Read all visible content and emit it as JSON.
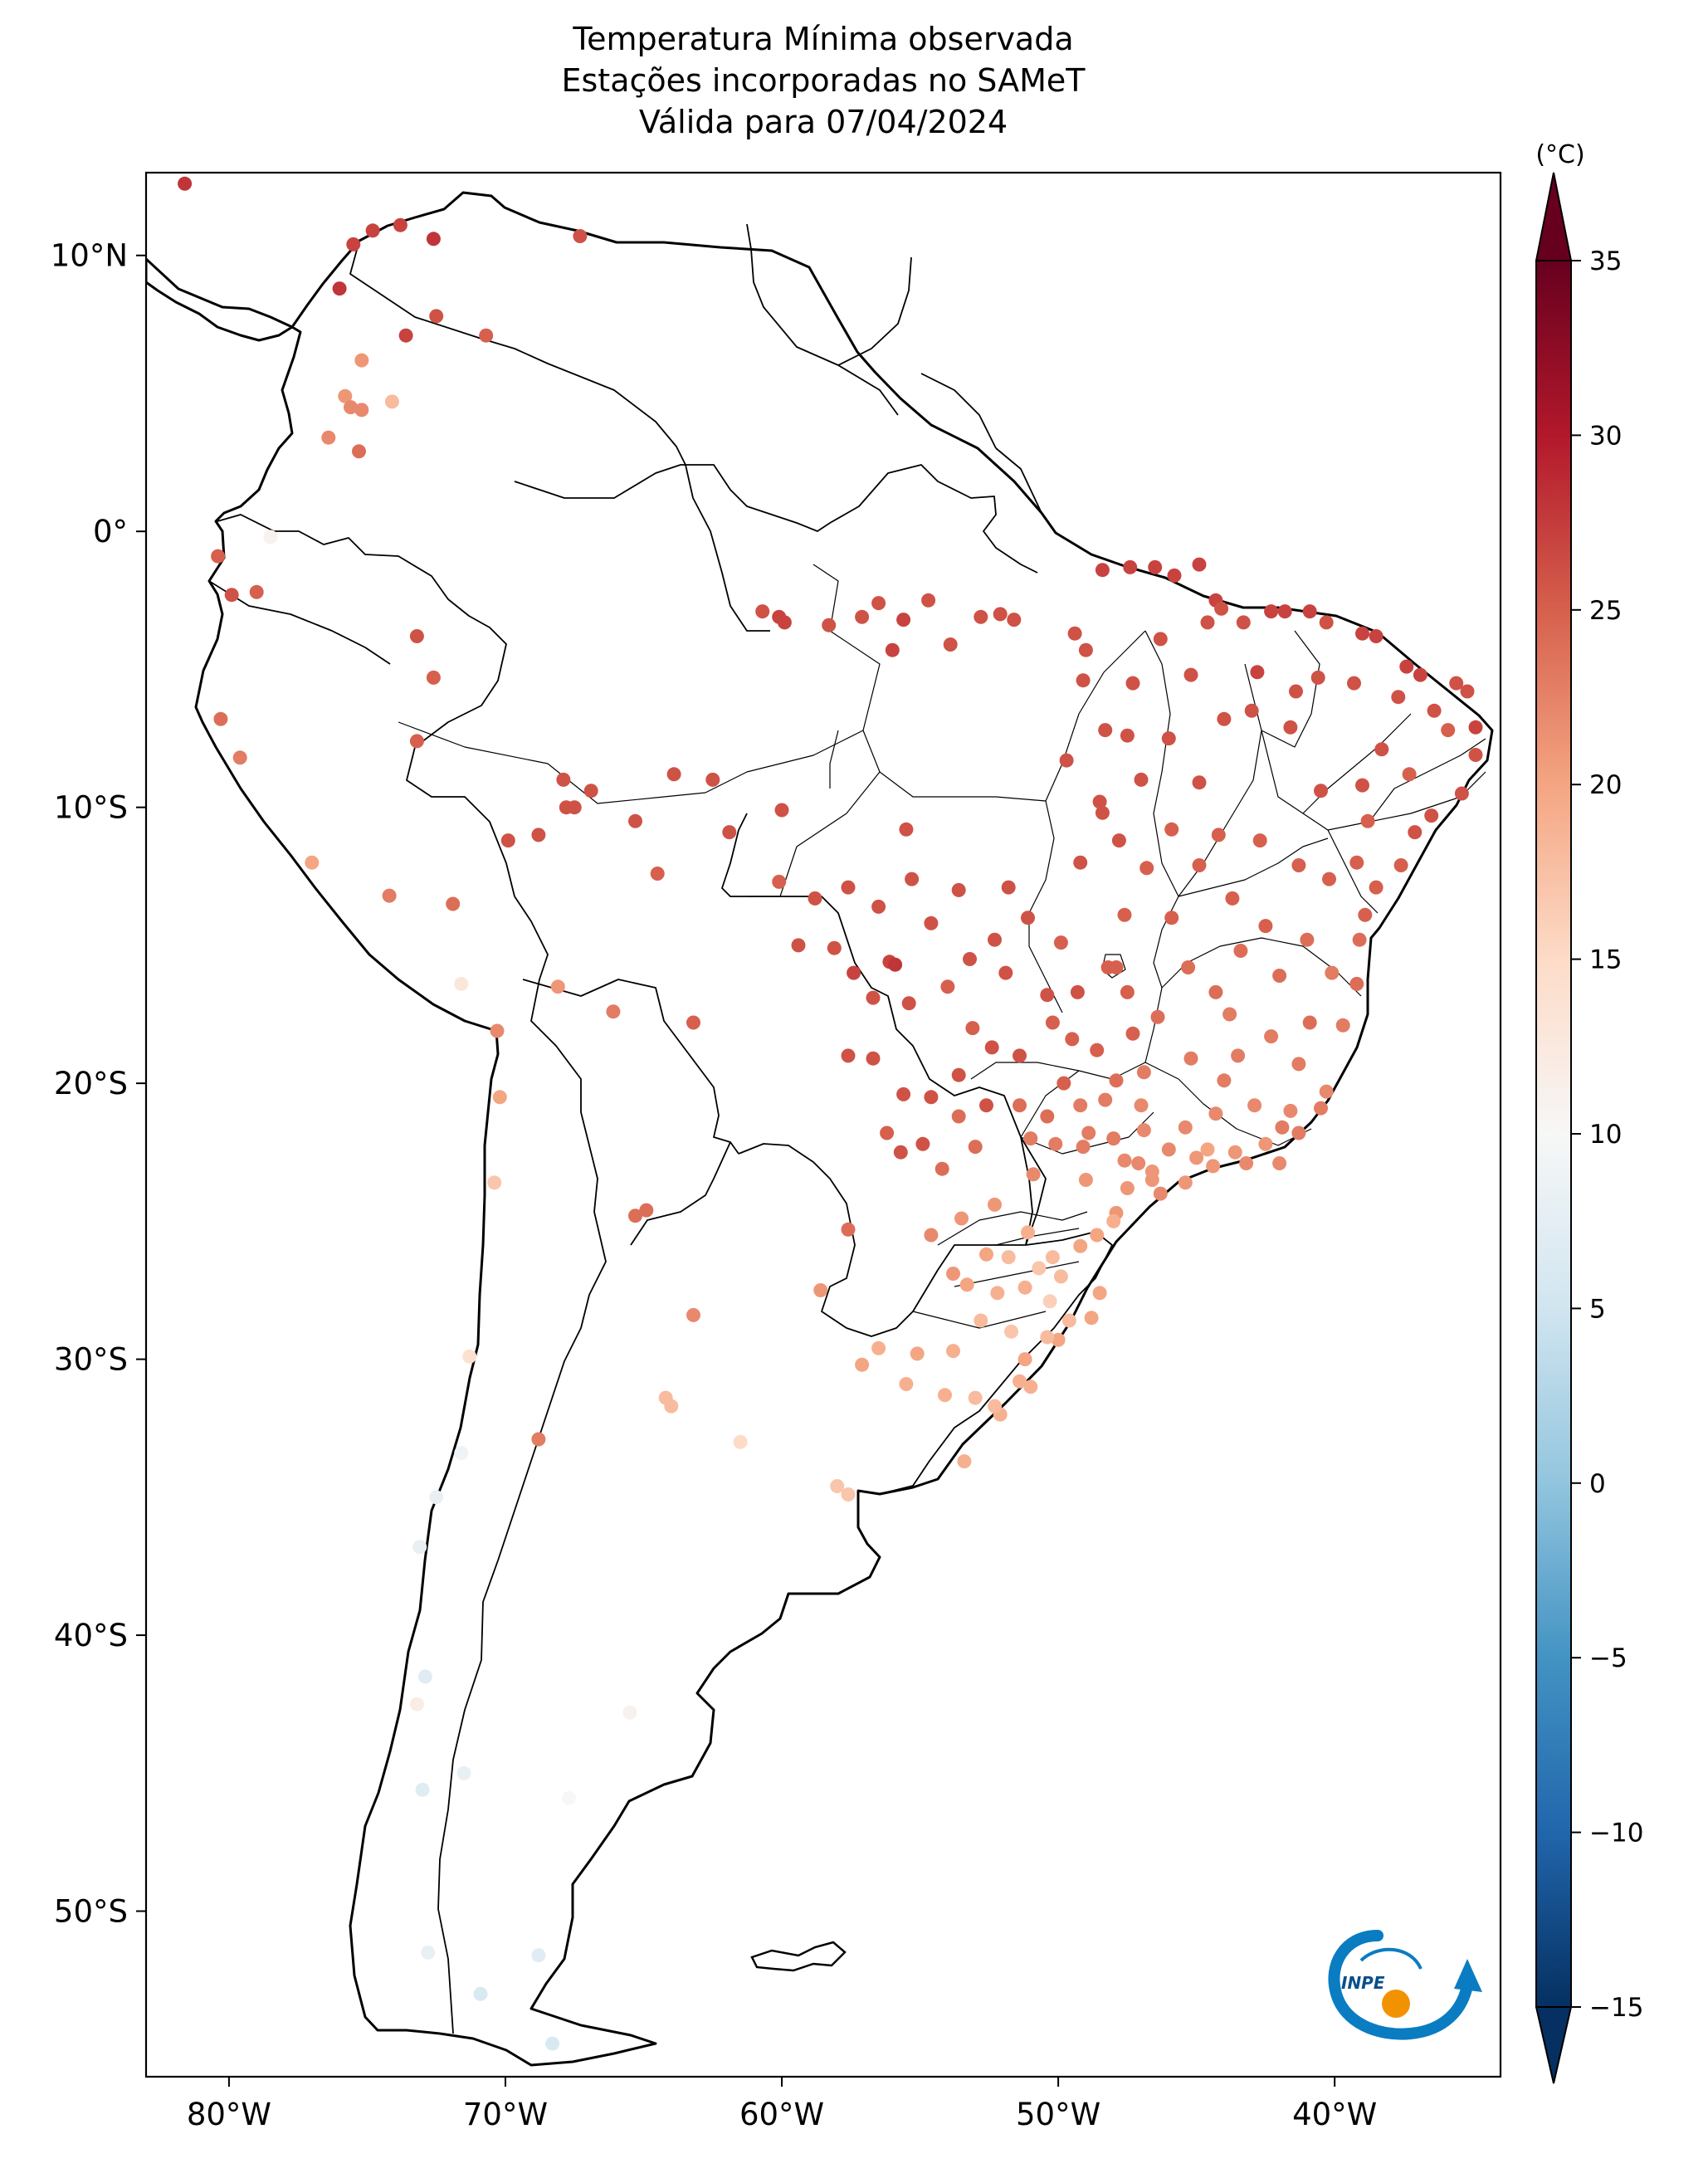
{
  "title": {
    "line1": "Temperatura Mínima observada",
    "line2": "Estações incorporadas no SAMeT",
    "line3": "Válida para 07/04/2024"
  },
  "map": {
    "lon_range": [
      -83,
      -34
    ],
    "lat_range": [
      -56,
      13
    ],
    "lon_ticks": [
      {
        "value": -80,
        "label": "80°W"
      },
      {
        "value": -70,
        "label": "70°W"
      },
      {
        "value": -60,
        "label": "60°W"
      },
      {
        "value": -50,
        "label": "50°W"
      },
      {
        "value": -40,
        "label": "40°W"
      }
    ],
    "lat_ticks": [
      {
        "value": 10,
        "label": "10°N"
      },
      {
        "value": 0,
        "label": "0°"
      },
      {
        "value": -10,
        "label": "10°S"
      },
      {
        "value": -20,
        "label": "20°S"
      },
      {
        "value": -30,
        "label": "30°S"
      },
      {
        "value": -40,
        "label": "40°S"
      },
      {
        "value": -50,
        "label": "50°S"
      }
    ]
  },
  "colorbar": {
    "unit": "(°C)",
    "min": -15,
    "max": 35,
    "ticks": [
      35,
      30,
      25,
      20,
      15,
      10,
      5,
      0,
      -5,
      -10,
      -15
    ],
    "tick_labels": [
      "35",
      "30",
      "25",
      "20",
      "15",
      "10",
      "5",
      "0",
      "−5",
      "−10",
      "−15"
    ],
    "colormap": "RdBu_r",
    "extend": "both"
  },
  "logo": {
    "text": "INPE",
    "blue": "#0a7cc2",
    "orange": "#f39200"
  },
  "chart_data": {
    "type": "scatter",
    "title": "Temperatura Mínima observada / Estações incorporadas no SAMeT / Válida para 07/04/2024",
    "xlabel": "",
    "ylabel": "",
    "colorbar_label": "(°C)",
    "note": "points: [longitude, latitude, minimum temperature °C]",
    "points": [
      [
        -81.6,
        12.6,
        28
      ],
      [
        -75.5,
        10.4,
        27
      ],
      [
        -74.8,
        10.9,
        27
      ],
      [
        -73.8,
        11.1,
        27
      ],
      [
        -72.6,
        10.6,
        28
      ],
      [
        -76.0,
        8.8,
        28
      ],
      [
        -73.6,
        7.1,
        27
      ],
      [
        -72.5,
        7.8,
        26
      ],
      [
        -70.7,
        7.1,
        25
      ],
      [
        -67.3,
        10.7,
        26
      ],
      [
        -75.2,
        6.2,
        21
      ],
      [
        -75.8,
        4.9,
        21
      ],
      [
        -75.6,
        4.5,
        22
      ],
      [
        -75.2,
        4.4,
        22
      ],
      [
        -74.1,
        4.7,
        18
      ],
      [
        -76.4,
        3.4,
        22
      ],
      [
        -75.3,
        2.9,
        24
      ],
      [
        -80.4,
        -0.9,
        25
      ],
      [
        -79.0,
        -2.2,
        25
      ],
      [
        -78.5,
        -0.2,
        11
      ],
      [
        -79.9,
        -2.3,
        26
      ],
      [
        -80.3,
        -6.8,
        24
      ],
      [
        -79.6,
        -8.2,
        23
      ],
      [
        -77.0,
        -12.0,
        20
      ],
      [
        -71.6,
        -16.4,
        13
      ],
      [
        -70.3,
        -18.1,
        22
      ],
      [
        -70.2,
        -20.5,
        20
      ],
      [
        -70.4,
        -23.6,
        17
      ],
      [
        -71.3,
        -29.9,
        14
      ],
      [
        -71.6,
        -33.4,
        9
      ],
      [
        -72.5,
        -35.0,
        8
      ],
      [
        -73.1,
        -36.8,
        8
      ],
      [
        -72.9,
        -41.5,
        7
      ],
      [
        -73.2,
        -42.5,
        12
      ],
      [
        -73.0,
        -45.6,
        7
      ],
      [
        -71.5,
        -45.0,
        8
      ],
      [
        -72.8,
        -51.5,
        8
      ],
      [
        -70.9,
        -53.0,
        6
      ],
      [
        -68.8,
        -51.6,
        7
      ],
      [
        -68.3,
        -54.8,
        6
      ],
      [
        -67.7,
        -45.9,
        10
      ],
      [
        -65.5,
        -42.8,
        11
      ],
      [
        -68.8,
        -32.9,
        23
      ],
      [
        -64.2,
        -31.4,
        18
      ],
      [
        -64.0,
        -31.7,
        18
      ],
      [
        -61.5,
        -33.0,
        15
      ],
      [
        -58.0,
        -34.6,
        17
      ],
      [
        -57.6,
        -34.9,
        17
      ],
      [
        -65.3,
        -24.8,
        24
      ],
      [
        -64.9,
        -24.6,
        24
      ],
      [
        -63.2,
        -28.4,
        22
      ],
      [
        -58.6,
        -27.5,
        21
      ],
      [
        -57.6,
        -25.3,
        24
      ],
      [
        -68.1,
        -16.5,
        21
      ],
      [
        -66.1,
        -17.4,
        23
      ],
      [
        -63.2,
        -17.8,
        25
      ],
      [
        -71.9,
        -13.5,
        24
      ],
      [
        -74.2,
        -13.2,
        23
      ],
      [
        -73.2,
        -3.8,
        26
      ],
      [
        -73.2,
        -7.6,
        25
      ],
      [
        -72.6,
        -5.3,
        25
      ],
      [
        -68.8,
        -11.0,
        26
      ],
      [
        -67.8,
        -10.0,
        26
      ],
      [
        -67.5,
        -10.0,
        26
      ],
      [
        -67.9,
        -9.0,
        26
      ],
      [
        -66.9,
        -9.4,
        26
      ],
      [
        -69.9,
        -11.2,
        26
      ],
      [
        -60.1,
        -3.1,
        27
      ],
      [
        -60.7,
        -2.9,
        26
      ],
      [
        -59.9,
        -3.3,
        27
      ],
      [
        -58.3,
        -3.4,
        26
      ],
      [
        -57.1,
        -3.1,
        26
      ],
      [
        -56.5,
        -2.6,
        26
      ],
      [
        -55.6,
        -3.2,
        27
      ],
      [
        -54.7,
        -2.5,
        26
      ],
      [
        -52.8,
        -3.1,
        26
      ],
      [
        -52.1,
        -3.0,
        26
      ],
      [
        -51.6,
        -3.2,
        26
      ],
      [
        -53.9,
        -4.1,
        26
      ],
      [
        -56.0,
        -4.3,
        27
      ],
      [
        -49.4,
        -3.7,
        26
      ],
      [
        -49.0,
        -4.3,
        26
      ],
      [
        -47.4,
        -1.3,
        27
      ],
      [
        -48.4,
        -1.4,
        27
      ],
      [
        -46.5,
        -1.3,
        27
      ],
      [
        -45.8,
        -1.6,
        27
      ],
      [
        -44.9,
        -1.2,
        27
      ],
      [
        -44.3,
        -2.5,
        27
      ],
      [
        -44.1,
        -2.8,
        26
      ],
      [
        -44.6,
        -3.3,
        26
      ],
      [
        -43.3,
        -3.3,
        26
      ],
      [
        -42.3,
        -2.9,
        27
      ],
      [
        -41.8,
        -2.9,
        27
      ],
      [
        -40.9,
        -2.9,
        27
      ],
      [
        -40.3,
        -3.3,
        26
      ],
      [
        -39.0,
        -3.7,
        27
      ],
      [
        -38.5,
        -3.8,
        27
      ],
      [
        -37.4,
        -4.9,
        27
      ],
      [
        -36.9,
        -5.2,
        27
      ],
      [
        -35.6,
        -5.5,
        26
      ],
      [
        -35.2,
        -5.8,
        26
      ],
      [
        -34.9,
        -7.1,
        27
      ],
      [
        -34.9,
        -8.1,
        26
      ],
      [
        -35.4,
        -9.5,
        26
      ],
      [
        -36.5,
        -10.3,
        26
      ],
      [
        -37.1,
        -10.9,
        26
      ],
      [
        -38.5,
        -12.9,
        25
      ],
      [
        -38.9,
        -13.9,
        25
      ],
      [
        -39.1,
        -14.8,
        24
      ],
      [
        -39.2,
        -16.4,
        24
      ],
      [
        -39.7,
        -17.9,
        23
      ],
      [
        -40.3,
        -20.3,
        22
      ],
      [
        -41.3,
        -21.8,
        23
      ],
      [
        -42.0,
        -22.9,
        22
      ],
      [
        -43.2,
        -22.9,
        22
      ],
      [
        -44.4,
        -23.0,
        21
      ],
      [
        -45.4,
        -23.6,
        21
      ],
      [
        -46.6,
        -23.5,
        21
      ],
      [
        -46.3,
        -24.0,
        22
      ],
      [
        -47.9,
        -24.7,
        21
      ],
      [
        -48.6,
        -25.5,
        20
      ],
      [
        -48.5,
        -27.6,
        20
      ],
      [
        -48.8,
        -28.5,
        20
      ],
      [
        -50.0,
        -29.3,
        20
      ],
      [
        -51.2,
        -30.0,
        20
      ],
      [
        -52.1,
        -32.0,
        19
      ],
      [
        -53.4,
        -33.7,
        19
      ],
      [
        -51.4,
        -30.8,
        19
      ],
      [
        -60.0,
        -10.1,
        26
      ],
      [
        -61.9,
        -10.9,
        26
      ],
      [
        -63.9,
        -8.8,
        26
      ],
      [
        -62.5,
        -9.0,
        26
      ],
      [
        -65.3,
        -10.5,
        26
      ],
      [
        -64.5,
        -12.4,
        25
      ],
      [
        -60.1,
        -12.7,
        25
      ],
      [
        -58.8,
        -13.3,
        26
      ],
      [
        -59.4,
        -15.0,
        26
      ],
      [
        -57.6,
        -12.9,
        26
      ],
      [
        -56.1,
        -15.6,
        27
      ],
      [
        -55.9,
        -15.7,
        28
      ],
      [
        -56.5,
        -13.6,
        26
      ],
      [
        -55.3,
        -12.6,
        26
      ],
      [
        -54.6,
        -14.2,
        26
      ],
      [
        -53.6,
        -13.0,
        26
      ],
      [
        -52.3,
        -14.8,
        26
      ],
      [
        -51.8,
        -12.9,
        26
      ],
      [
        -51.1,
        -14.0,
        26
      ],
      [
        -55.5,
        -10.8,
        26
      ],
      [
        -57.4,
        -16.0,
        27
      ],
      [
        -58.1,
        -15.1,
        26
      ],
      [
        -56.7,
        -16.9,
        26
      ],
      [
        -55.4,
        -17.1,
        26
      ],
      [
        -54.0,
        -16.5,
        25
      ],
      [
        -53.2,
        -15.5,
        26
      ],
      [
        -57.6,
        -19.0,
        26
      ],
      [
        -56.7,
        -19.1,
        26
      ],
      [
        -55.6,
        -20.4,
        26
      ],
      [
        -54.6,
        -20.5,
        26
      ],
      [
        -54.9,
        -22.2,
        26
      ],
      [
        -55.7,
        -22.5,
        26
      ],
      [
        -53.6,
        -19.7,
        26
      ],
      [
        -52.6,
        -20.8,
        26
      ],
      [
        -53.0,
        -22.3,
        24
      ],
      [
        -54.2,
        -23.1,
        24
      ],
      [
        -52.4,
        -18.7,
        26
      ],
      [
        -51.4,
        -19.0,
        26
      ],
      [
        -50.4,
        -16.8,
        26
      ],
      [
        -49.3,
        -16.7,
        26
      ],
      [
        -48.2,
        -15.8,
        25
      ],
      [
        -47.9,
        -15.8,
        25
      ],
      [
        -47.5,
        -16.7,
        25
      ],
      [
        -49.5,
        -18.4,
        25
      ],
      [
        -50.2,
        -17.8,
        25
      ],
      [
        -48.6,
        -18.8,
        25
      ],
      [
        -47.3,
        -18.2,
        25
      ],
      [
        -46.4,
        -17.6,
        24
      ],
      [
        -45.3,
        -15.8,
        24
      ],
      [
        -44.3,
        -16.7,
        24
      ],
      [
        -43.8,
        -17.5,
        23
      ],
      [
        -43.5,
        -19.0,
        23
      ],
      [
        -44.0,
        -19.9,
        23
      ],
      [
        -45.2,
        -19.1,
        23
      ],
      [
        -46.9,
        -19.6,
        23
      ],
      [
        -47.9,
        -19.9,
        24
      ],
      [
        -48.3,
        -20.6,
        23
      ],
      [
        -49.2,
        -20.8,
        23
      ],
      [
        -50.4,
        -21.2,
        24
      ],
      [
        -51.4,
        -20.8,
        24
      ],
      [
        -50.1,
        -22.2,
        23
      ],
      [
        -49.1,
        -22.3,
        23
      ],
      [
        -48.0,
        -22.0,
        23
      ],
      [
        -47.1,
        -22.9,
        22
      ],
      [
        -46.9,
        -21.7,
        22
      ],
      [
        -45.4,
        -21.6,
        22
      ],
      [
        -44.3,
        -21.1,
        22
      ],
      [
        -42.9,
        -20.8,
        22
      ],
      [
        -41.9,
        -21.6,
        23
      ],
      [
        -40.5,
        -20.9,
        23
      ],
      [
        -41.3,
        -19.3,
        23
      ],
      [
        -42.3,
        -18.3,
        23
      ],
      [
        -40.9,
        -17.8,
        24
      ],
      [
        -42.0,
        -16.1,
        24
      ],
      [
        -41.0,
        -14.8,
        24
      ],
      [
        -42.5,
        -14.3,
        25
      ],
      [
        -43.7,
        -13.3,
        25
      ],
      [
        -44.9,
        -12.1,
        25
      ],
      [
        -45.9,
        -10.8,
        25
      ],
      [
        -46.8,
        -12.2,
        25
      ],
      [
        -47.8,
        -11.2,
        26
      ],
      [
        -48.4,
        -10.2,
        26
      ],
      [
        -49.2,
        -12.0,
        26
      ],
      [
        -48.3,
        -7.2,
        26
      ],
      [
        -47.5,
        -7.4,
        26
      ],
      [
        -46.0,
        -7.5,
        26
      ],
      [
        -44.9,
        -9.1,
        26
      ],
      [
        -44.0,
        -6.8,
        26
      ],
      [
        -42.8,
        -5.1,
        27
      ],
      [
        -41.6,
        -7.1,
        26
      ],
      [
        -40.5,
        -9.4,
        26
      ],
      [
        -39.0,
        -9.2,
        26
      ],
      [
        -38.3,
        -7.9,
        26
      ],
      [
        -37.3,
        -8.8,
        25
      ],
      [
        -36.4,
        -6.5,
        26
      ],
      [
        -35.9,
        -7.2,
        25
      ],
      [
        -37.7,
        -6.0,
        26
      ],
      [
        -39.3,
        -5.5,
        26
      ],
      [
        -40.6,
        -5.3,
        26
      ],
      [
        -41.4,
        -5.8,
        26
      ],
      [
        -43.0,
        -6.5,
        26
      ],
      [
        -45.2,
        -5.2,
        26
      ],
      [
        -46.3,
        -3.9,
        26
      ],
      [
        -47.3,
        -5.5,
        26
      ],
      [
        -49.1,
        -5.4,
        26
      ],
      [
        -49.7,
        -8.3,
        26
      ],
      [
        -48.5,
        -9.8,
        26
      ],
      [
        -47.0,
        -9.0,
        26
      ],
      [
        -44.2,
        -11.0,
        25
      ],
      [
        -42.7,
        -11.2,
        25
      ],
      [
        -41.3,
        -12.1,
        25
      ],
      [
        -40.2,
        -12.6,
        25
      ],
      [
        -39.2,
        -12.0,
        25
      ],
      [
        -38.8,
        -10.5,
        25
      ],
      [
        -37.6,
        -12.1,
        25
      ],
      [
        -40.1,
        -16.0,
        23
      ],
      [
        -43.4,
        -15.2,
        24
      ],
      [
        -45.9,
        -14.0,
        25
      ],
      [
        -47.6,
        -13.9,
        25
      ],
      [
        -49.9,
        -14.9,
        25
      ],
      [
        -51.9,
        -16.0,
        26
      ],
      [
        -53.1,
        -18.0,
        25
      ],
      [
        -49.8,
        -20.0,
        25
      ],
      [
        -48.9,
        -21.8,
        23
      ],
      [
        -47.6,
        -22.8,
        22
      ],
      [
        -46.0,
        -22.4,
        22
      ],
      [
        -46.6,
        -23.2,
        21
      ],
      [
        -47.5,
        -23.8,
        21
      ],
      [
        -49.0,
        -23.5,
        21
      ],
      [
        -50.9,
        -23.3,
        22
      ],
      [
        -52.3,
        -24.4,
        21
      ],
      [
        -53.5,
        -24.9,
        21
      ],
      [
        -54.6,
        -25.5,
        22
      ],
      [
        -53.8,
        -26.9,
        21
      ],
      [
        -52.6,
        -26.2,
        20
      ],
      [
        -51.1,
        -25.4,
        19
      ],
      [
        -50.2,
        -26.3,
        18
      ],
      [
        -49.2,
        -25.9,
        20
      ],
      [
        -51.2,
        -27.4,
        19
      ],
      [
        -52.2,
        -27.6,
        19
      ],
      [
        -53.3,
        -27.3,
        20
      ],
      [
        -52.8,
        -28.6,
        18
      ],
      [
        -51.7,
        -29.0,
        17
      ],
      [
        -50.4,
        -29.2,
        18
      ],
      [
        -53.8,
        -29.7,
        19
      ],
      [
        -55.1,
        -29.8,
        20
      ],
      [
        -56.5,
        -29.6,
        19
      ],
      [
        -57.1,
        -30.2,
        20
      ],
      [
        -55.5,
        -30.9,
        19
      ],
      [
        -54.1,
        -31.3,
        19
      ],
      [
        -53.0,
        -31.4,
        18
      ],
      [
        -52.3,
        -31.7,
        18
      ],
      [
        -51.0,
        -31.0,
        19
      ],
      [
        -50.3,
        -27.9,
        16
      ],
      [
        -49.6,
        -28.6,
        18
      ],
      [
        -49.9,
        -27.0,
        18
      ],
      [
        -50.7,
        -26.7,
        17
      ],
      [
        -51.8,
        -26.3,
        18
      ],
      [
        -48.0,
        -25.0,
        19
      ],
      [
        -45.0,
        -22.7,
        21
      ],
      [
        -44.6,
        -22.4,
        20
      ],
      [
        -43.6,
        -22.5,
        21
      ],
      [
        -42.5,
        -22.2,
        21
      ],
      [
        -41.6,
        -21.0,
        22
      ],
      [
        -47.0,
        -20.8,
        22
      ],
      [
        -51.0,
        -22.0,
        23
      ],
      [
        -53.6,
        -21.2,
        24
      ],
      [
        -56.2,
        -21.8,
        25
      ]
    ]
  }
}
